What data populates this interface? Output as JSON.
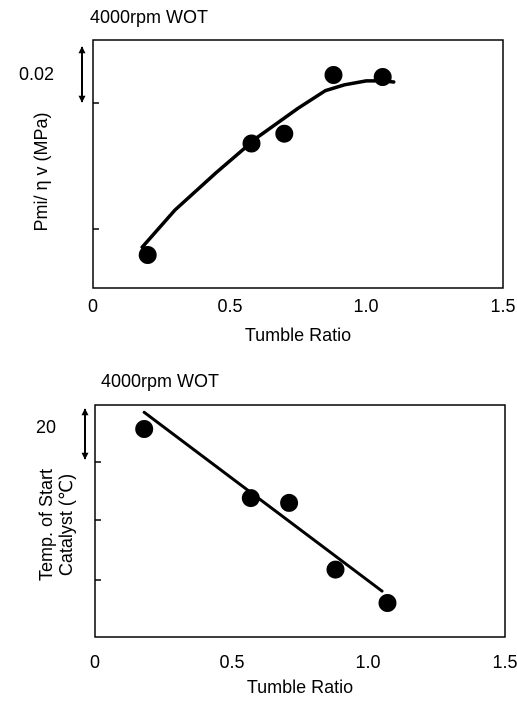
{
  "chart_data": [
    {
      "type": "scatter",
      "title": "4000rpm WOT",
      "xlabel": "Tumble Ratio",
      "ylabel": "Pmi/ η v  (MPa)",
      "xlim": [
        0,
        1.5
      ],
      "x_ticks": [
        "0",
        "0.5",
        "1.0",
        "1.5"
      ],
      "scale_marker": "0.02",
      "grid": false,
      "series": [
        {
          "kind": "points",
          "x": [
            0.2,
            0.58,
            0.7,
            0.88,
            1.06
          ],
          "y": [
            0.0,
            0.0285,
            0.031,
            0.046,
            0.0455
          ]
        },
        {
          "kind": "fitted-curve",
          "x": [
            0.18,
            0.3,
            0.45,
            0.6,
            0.75,
            0.85,
            0.92,
            1.0,
            1.06,
            1.1
          ],
          "y": [
            0.002,
            0.0115,
            0.021,
            0.03,
            0.0375,
            0.042,
            0.0435,
            0.0445,
            0.0445,
            0.0442
          ]
        }
      ]
    },
    {
      "type": "scatter",
      "title": "4000rpm WOT",
      "xlabel": "Tumble Ratio",
      "ylabel": "Temp. of Start Catalyst (℃)",
      "ylabel_lines": [
        "Temp. of Start",
        "Catalyst (℃)"
      ],
      "xlim": [
        0,
        1.5
      ],
      "x_ticks": [
        "0",
        "0.5",
        "1.0",
        "1.5"
      ],
      "scale_marker": "20",
      "grid": false,
      "series": [
        {
          "kind": "points",
          "x": [
            0.18,
            0.57,
            0.71,
            0.88,
            1.07
          ],
          "y": [
            57,
            28,
            26,
            -2,
            -16
          ]
        },
        {
          "kind": "fitted-line",
          "x": [
            0.18,
            1.05
          ],
          "y": [
            64,
            -11
          ]
        }
      ]
    }
  ]
}
